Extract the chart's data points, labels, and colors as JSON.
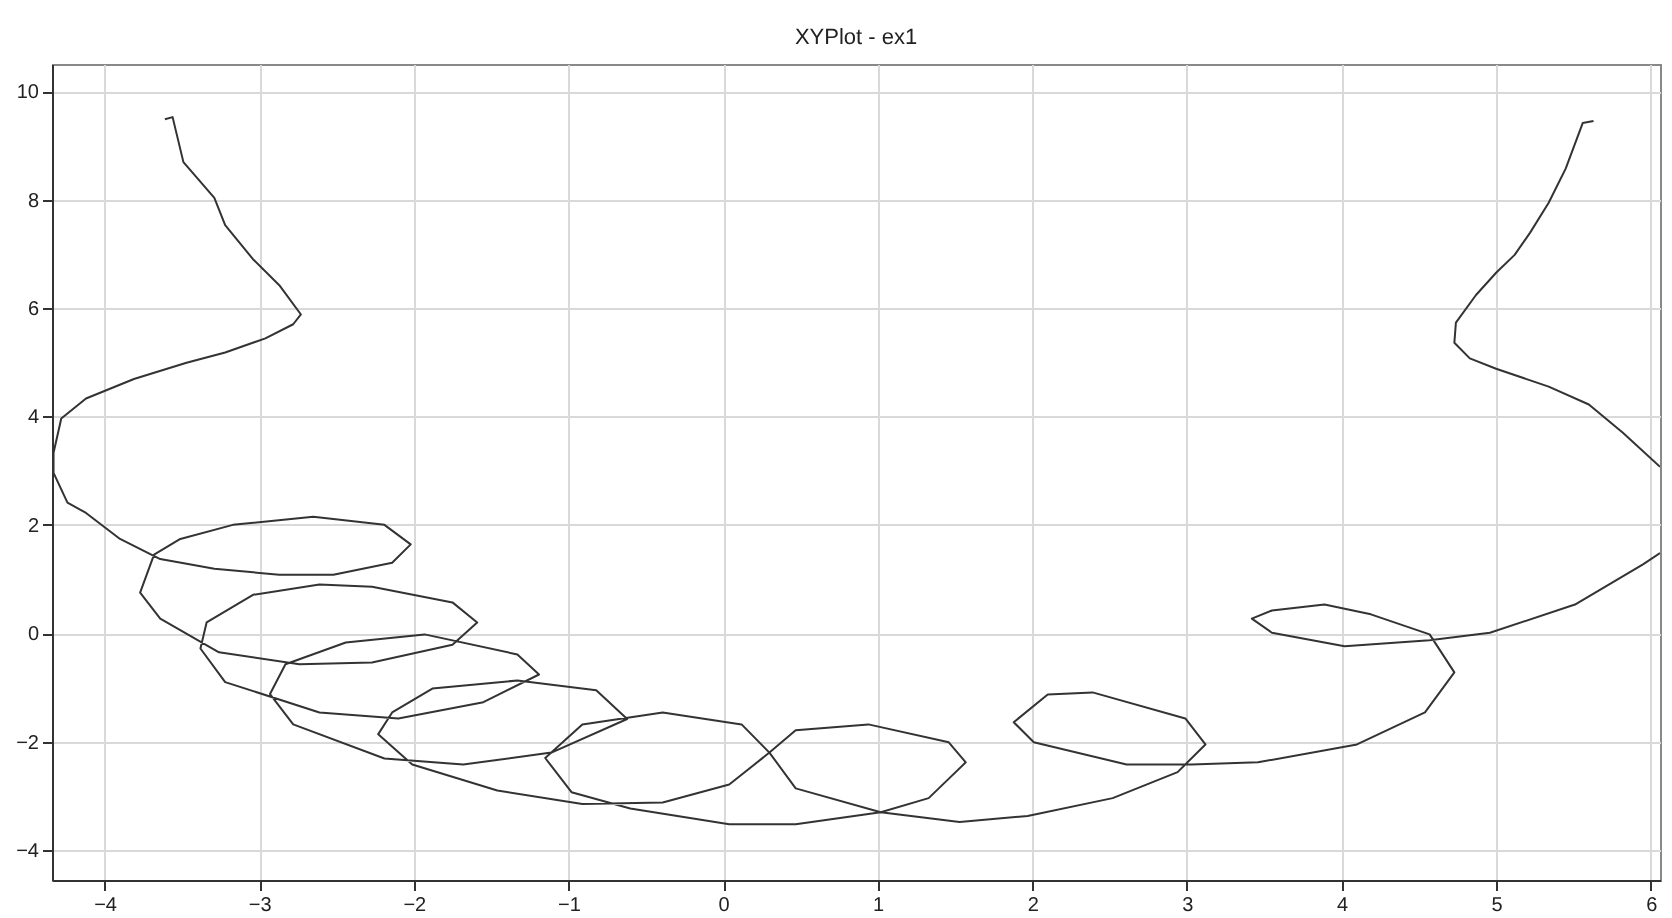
{
  "chart_data": {
    "type": "line",
    "title": "XYPlot - ex1",
    "xlim": [
      -4.34,
      6.06
    ],
    "ylim": [
      -4.55,
      10.5
    ],
    "xticks": [
      -4,
      -3,
      -2,
      -1,
      0,
      1,
      2,
      3,
      4,
      5,
      6
    ],
    "yticks": [
      -4,
      -2,
      0,
      2,
      4,
      6,
      8,
      10
    ],
    "grid": true,
    "series": [
      {
        "color": "#333333",
        "x": [
          -3.61,
          -3.56,
          -3.49,
          -3.29,
          -3.22,
          -3.04,
          -2.87,
          -2.73,
          -2.78,
          -2.96,
          -3.22,
          -3.47,
          -3.81,
          -4.12,
          -4.28,
          -4.33,
          -4.33,
          -4.24,
          -4.12,
          -3.9,
          -3.64,
          -3.29,
          -2.87,
          -2.52,
          -2.14,
          -2.02,
          -2.19,
          -2.65,
          -3.17,
          -3.51,
          -3.68,
          -3.77,
          -3.64,
          -3.26,
          -2.74,
          -2.27,
          -1.75,
          -1.59,
          -1.75,
          -2.27,
          -2.61,
          -3.04,
          -3.34,
          -3.38,
          -3.22,
          -2.61,
          -2.1,
          -1.55,
          -1.19,
          -1.33,
          -1.93,
          -2.44,
          -2.83,
          -2.93,
          -2.78,
          -2.19,
          -1.68,
          -1.11,
          -0.62,
          -0.82,
          -1.33,
          -1.88,
          -2.14,
          -2.23,
          -2.01,
          -1.46,
          -0.91,
          -0.39,
          0.04,
          0.3,
          0.12,
          -0.39,
          -0.91,
          -1.15,
          -0.98,
          -0.6,
          0.04,
          0.47,
          1.02,
          1.33,
          1.57,
          1.46,
          0.94,
          0.47,
          0.3,
          0.47,
          1.02,
          1.53,
          1.97,
          2.52,
          2.94,
          3.12,
          2.99,
          2.39,
          2.1,
          1.88,
          2.01,
          2.61,
          3.03,
          3.46,
          4.1,
          4.54,
          4.73,
          4.57,
          4.19,
          3.89,
          3.55,
          3.42,
          3.55,
          4.02,
          4.57,
          4.96,
          5.51,
          5.95,
          6.06,
          null,
          6.06,
          5.82,
          5.6,
          5.34,
          5.0,
          4.83,
          4.73,
          4.74,
          4.87,
          5.0,
          5.12,
          5.22,
          5.34,
          5.45,
          5.56,
          5.63
        ],
        "values": [
          9.48,
          9.52,
          8.69,
          8.03,
          7.53,
          6.9,
          6.42,
          5.88,
          5.7,
          5.44,
          5.18,
          4.99,
          4.69,
          4.33,
          3.96,
          3.33,
          2.96,
          2.41,
          2.22,
          1.74,
          1.37,
          1.19,
          1.08,
          1.08,
          1.3,
          1.64,
          2.0,
          2.15,
          2.0,
          1.74,
          1.45,
          0.75,
          0.27,
          -0.35,
          -0.57,
          -0.54,
          -0.21,
          0.2,
          0.57,
          0.86,
          0.9,
          0.71,
          0.2,
          -0.28,
          -0.9,
          -1.46,
          -1.57,
          -1.27,
          -0.76,
          -0.39,
          -0.02,
          -0.17,
          -0.57,
          -1.12,
          -1.68,
          -2.31,
          -2.42,
          -2.2,
          -1.58,
          -1.05,
          -0.87,
          -1.02,
          -1.46,
          -1.86,
          -2.42,
          -2.9,
          -3.15,
          -3.12,
          -2.79,
          -2.2,
          -1.68,
          -1.46,
          -1.68,
          -2.3,
          -2.93,
          -3.23,
          -3.52,
          -3.52,
          -3.3,
          -3.04,
          -2.38,
          -2.01,
          -1.68,
          -1.79,
          -2.2,
          -2.86,
          -3.3,
          -3.48,
          -3.37,
          -3.04,
          -2.56,
          -2.05,
          -1.57,
          -1.09,
          -1.13,
          -1.64,
          -2.01,
          -2.42,
          -2.42,
          -2.38,
          -2.05,
          -1.46,
          -0.72,
          -0.02,
          0.35,
          0.53,
          0.42,
          0.27,
          0.01,
          -0.24,
          -0.13,
          0.01,
          0.53,
          1.27,
          1.48,
          null,
          3.07,
          3.7,
          4.22,
          4.55,
          4.88,
          5.07,
          5.36,
          5.73,
          6.24,
          6.65,
          6.98,
          7.39,
          7.94,
          8.57,
          9.41,
          9.45
        ]
      }
    ]
  }
}
